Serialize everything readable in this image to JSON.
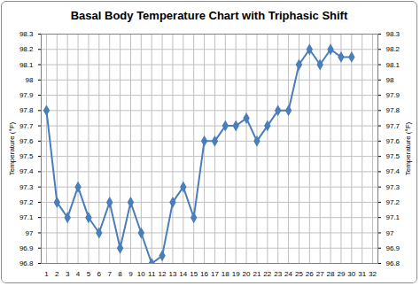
{
  "chart_data": {
    "type": "line",
    "title": "Basal Body Temperature Chart with Triphasic Shift",
    "y_label": "Temperature (°F)",
    "x": [
      1,
      2,
      3,
      4,
      5,
      6,
      7,
      8,
      9,
      10,
      11,
      12,
      13,
      14,
      15,
      16,
      17,
      18,
      19,
      20,
      21,
      22,
      23,
      24,
      25,
      26,
      27,
      28,
      29,
      30
    ],
    "values": [
      97.8,
      97.2,
      97.1,
      97.3,
      97.1,
      97.0,
      97.2,
      96.9,
      97.2,
      97.0,
      96.8,
      96.85,
      97.2,
      97.3,
      97.1,
      97.6,
      97.6,
      97.7,
      97.7,
      97.75,
      97.6,
      97.7,
      97.8,
      97.8,
      98.1,
      98.2,
      98.1,
      98.2,
      98.15,
      98.15
    ],
    "color": "#4a7ebb",
    "marker": "diamond",
    "xlim": [
      0.5,
      32.5
    ],
    "xticks": [
      1,
      2,
      3,
      4,
      5,
      6,
      7,
      8,
      9,
      10,
      11,
      12,
      13,
      14,
      15,
      16,
      17,
      18,
      19,
      20,
      21,
      22,
      23,
      24,
      25,
      26,
      27,
      28,
      29,
      30,
      31,
      32
    ],
    "ylim": [
      96.8,
      98.3
    ],
    "yticks": [
      96.8,
      96.9,
      97,
      97.1,
      97.2,
      97.3,
      97.4,
      97.5,
      97.6,
      97.7,
      97.8,
      97.9,
      98,
      98.1,
      98.2,
      98.3
    ],
    "grid": true
  }
}
